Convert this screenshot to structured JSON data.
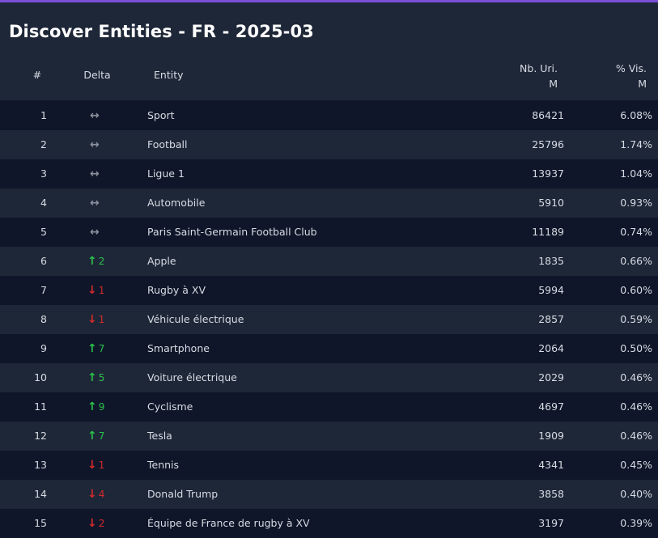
{
  "title": "Discover Entities - FR - 2025-03",
  "headers": {
    "rank": "#",
    "delta": "Delta",
    "entity": "Entity",
    "uri_line1": "Nb. Uri.",
    "uri_line2": "M",
    "vis_line1": "% Vis.",
    "vis_line2": "M"
  },
  "icons": {
    "flat": "left-right-arrow-icon",
    "up": "arrow-up-icon",
    "down": "arrow-down-icon"
  },
  "colors": {
    "accent": "#7b4fd6",
    "up": "#2bc24a",
    "down": "#d42a2a",
    "flat": "#8c919c"
  },
  "rows": [
    {
      "rank": "1",
      "trend": "flat",
      "delta": "",
      "entity": "Sport",
      "uri": "86421",
      "vis": "6.08%"
    },
    {
      "rank": "2",
      "trend": "flat",
      "delta": "",
      "entity": "Football",
      "uri": "25796",
      "vis": "1.74%"
    },
    {
      "rank": "3",
      "trend": "flat",
      "delta": "",
      "entity": "Ligue 1",
      "uri": "13937",
      "vis": "1.04%"
    },
    {
      "rank": "4",
      "trend": "flat",
      "delta": "",
      "entity": "Automobile",
      "uri": "5910",
      "vis": "0.93%"
    },
    {
      "rank": "5",
      "trend": "flat",
      "delta": "",
      "entity": "Paris Saint-Germain Football Club",
      "uri": "11189",
      "vis": "0.74%"
    },
    {
      "rank": "6",
      "trend": "up",
      "delta": "2",
      "entity": "Apple",
      "uri": "1835",
      "vis": "0.66%"
    },
    {
      "rank": "7",
      "trend": "down",
      "delta": "1",
      "entity": "Rugby à XV",
      "uri": "5994",
      "vis": "0.60%"
    },
    {
      "rank": "8",
      "trend": "down",
      "delta": "1",
      "entity": "Véhicule électrique",
      "uri": "2857",
      "vis": "0.59%"
    },
    {
      "rank": "9",
      "trend": "up",
      "delta": "7",
      "entity": "Smartphone",
      "uri": "2064",
      "vis": "0.50%"
    },
    {
      "rank": "10",
      "trend": "up",
      "delta": "5",
      "entity": "Voiture électrique",
      "uri": "2029",
      "vis": "0.46%"
    },
    {
      "rank": "11",
      "trend": "up",
      "delta": "9",
      "entity": "Cyclisme",
      "uri": "4697",
      "vis": "0.46%"
    },
    {
      "rank": "12",
      "trend": "up",
      "delta": "7",
      "entity": "Tesla",
      "uri": "1909",
      "vis": "0.46%"
    },
    {
      "rank": "13",
      "trend": "down",
      "delta": "1",
      "entity": "Tennis",
      "uri": "4341",
      "vis": "0.45%"
    },
    {
      "rank": "14",
      "trend": "down",
      "delta": "4",
      "entity": "Donald Trump",
      "uri": "3858",
      "vis": "0.40%"
    },
    {
      "rank": "15",
      "trend": "down",
      "delta": "2",
      "entity": "Équipe de France de rugby à XV",
      "uri": "3197",
      "vis": "0.39%"
    }
  ]
}
